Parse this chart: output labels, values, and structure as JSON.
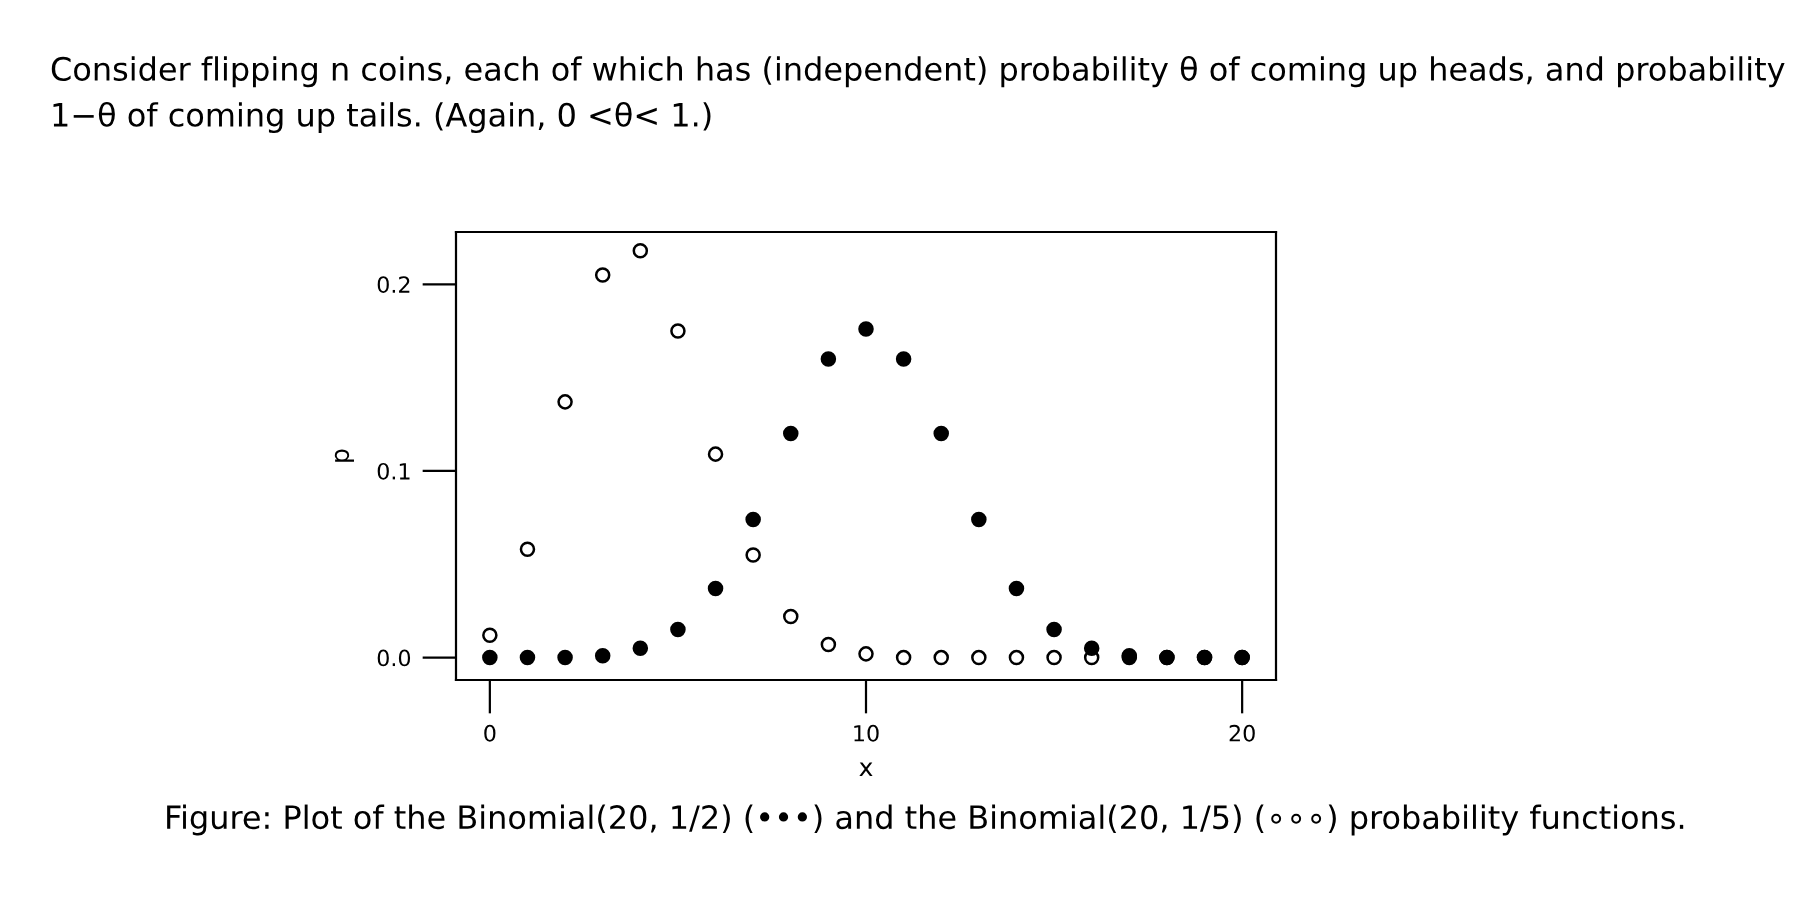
{
  "chart_data": {
    "type": "scatter",
    "title": "Consider flipping n coins, each of which has (independent) probability θ of coming up heads, and probability 1−θ of coming up tails. (Again, 0 <θ< 1.)",
    "xlabel": "x",
    "ylabel": "p",
    "annotations": [
      "Figure: Plot of the Binomial(20, 1/2) (•••) and the Binomial(20, 1/5) (∘∘∘) probability functions."
    ],
    "x": [
      0,
      1,
      2,
      3,
      4,
      5,
      6,
      7,
      8,
      9,
      10,
      11,
      12,
      13,
      14,
      15,
      16,
      17,
      18,
      19,
      20
    ],
    "series": [
      {
        "color": "#000000",
        "values": [
          0.0,
          0.0,
          0.0,
          0.001,
          0.005,
          0.015,
          0.037,
          0.074,
          0.12,
          0.16,
          0.176,
          0.16,
          0.12,
          0.074,
          0.037,
          0.015,
          0.005,
          0.001,
          0.0,
          0.0,
          0.0
        ]
      },
      {
        "color": "#000000",
        "values": [
          0.012,
          0.058,
          0.137,
          0.205,
          0.218,
          0.175,
          0.109,
          0.055,
          0.022,
          0.007,
          0.002,
          0.0,
          0.0,
          0.0,
          0.0,
          0.0,
          0.0,
          0.0,
          0.0,
          0.0,
          0.0
        ]
      }
    ],
    "xlim": [
      -0.9,
      20.9
    ],
    "ylim": [
      -0.012,
      0.228
    ],
    "xticks": [
      0,
      10,
      20
    ],
    "yticks": [
      {
        "value": 0,
        "label": "0.0"
      },
      0.1,
      0.2
    ],
    "marker": "circle",
    "grid": false
  }
}
